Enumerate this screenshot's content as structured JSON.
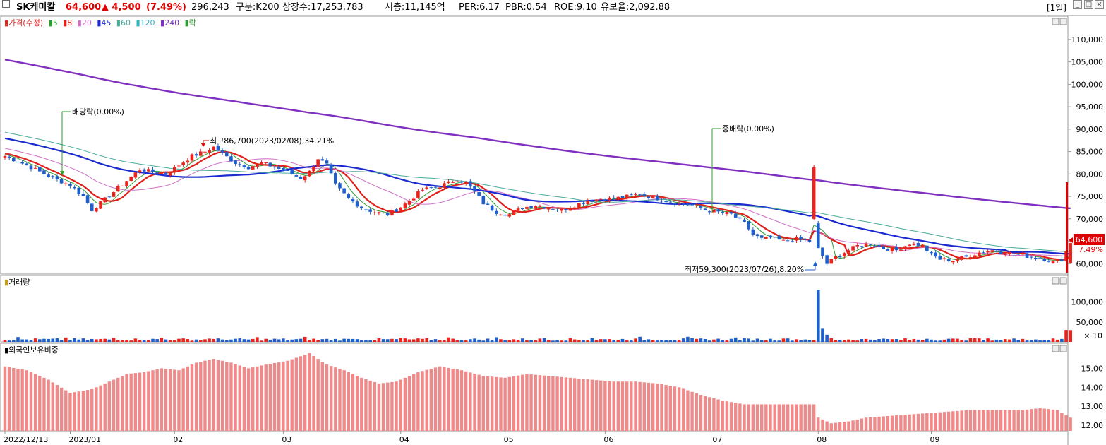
{
  "header": {
    "name": "SK케미칼",
    "price": "64,600",
    "change": "▲ 4,500",
    "change_pct": "(7.49%)",
    "volume": "296,243",
    "market": "구분:K200",
    "shares": "상장수:17,253,783",
    "mcap": "시총:11,145억",
    "per": "PER:6.17",
    "pbr": "PBR:0.54",
    "roe": "ROE:9.10",
    "reserve": "유보율:2,092.88",
    "period": "[1일]"
  },
  "price_legend": [
    "가격(수정)",
    "5",
    "8",
    "20",
    "45",
    "60",
    "120",
    "240",
    "락"
  ],
  "volume_title": "거래량",
  "foreign_title": "외국인보유비중",
  "current_price_tag": "64,600",
  "current_pct_tag": "7.49%",
  "volume_unit": "× 10",
  "annotations": {
    "dividend1": "배당락(0.00%)",
    "dividend2": "중배락(0.00%)",
    "high": "최고86,700(2023/02/08),34.21%",
    "low": "최저59,300(2023/07/26),8.20%"
  },
  "colors": {
    "up": "#e8241f",
    "down": "#1f5fcc",
    "ma5": "#2e9c2e",
    "ma8": "#e0201a",
    "ma20": "#d070c8",
    "ma45": "#1a2ad0",
    "ma60": "#4aaa9a",
    "ma240": "#8030c0",
    "foreign": "#f08a8a"
  },
  "chart_data": [
    {
      "type": "candlestick",
      "title": "가격(수정)",
      "x_ticks": [
        "2022/12/13",
        "2023/01",
        "02",
        "03",
        "04",
        "05",
        "06",
        "07",
        "08",
        "09"
      ],
      "y_ticks": [
        60000,
        65000,
        70000,
        75000,
        80000,
        85000,
        90000,
        95000,
        100000,
        105000,
        110000
      ],
      "ylim": [
        58000,
        112500
      ],
      "close_anchors": [
        [
          0,
          84000
        ],
        [
          5,
          82000
        ],
        [
          10,
          79500
        ],
        [
          15,
          77500
        ],
        [
          18,
          75000
        ],
        [
          20,
          72000
        ],
        [
          22,
          73500
        ],
        [
          25,
          76000
        ],
        [
          28,
          78500
        ],
        [
          31,
          81000
        ],
        [
          34,
          80500
        ],
        [
          37,
          80000
        ],
        [
          40,
          82000
        ],
        [
          43,
          84000
        ],
        [
          46,
          85000
        ],
        [
          48,
          86000
        ],
        [
          50,
          84500
        ],
        [
          53,
          82500
        ],
        [
          56,
          81500
        ],
        [
          59,
          82500
        ],
        [
          62,
          81500
        ],
        [
          65,
          80500
        ],
        [
          68,
          79000
        ],
        [
          70,
          80500
        ],
        [
          72,
          83500
        ],
        [
          74,
          82000
        ],
        [
          76,
          77500
        ],
        [
          79,
          74500
        ],
        [
          82,
          72500
        ],
        [
          85,
          71500
        ],
        [
          88,
          71000
        ],
        [
          90,
          72000
        ],
        [
          93,
          74000
        ],
        [
          96,
          76500
        ],
        [
          99,
          77000
        ],
        [
          102,
          78000
        ],
        [
          104,
          78800
        ],
        [
          106,
          78000
        ],
        [
          108,
          76000
        ],
        [
          110,
          73500
        ],
        [
          113,
          71500
        ],
        [
          116,
          71000
        ],
        [
          119,
          72500
        ],
        [
          122,
          73000
        ],
        [
          125,
          72500
        ],
        [
          128,
          72000
        ],
        [
          131,
          73000
        ],
        [
          134,
          74000
        ],
        [
          137,
          74500
        ],
        [
          140,
          74500
        ],
        [
          143,
          75000
        ],
        [
          146,
          75500
        ],
        [
          149,
          74800
        ],
        [
          152,
          74000
        ],
        [
          155,
          73500
        ],
        [
          158,
          73000
        ],
        [
          161,
          72000
        ],
        [
          164,
          71500
        ],
        [
          167,
          71000
        ],
        [
          170,
          69000
        ],
        [
          172,
          66500
        ],
        [
          174,
          65500
        ],
        [
          176,
          65800
        ],
        [
          179,
          65000
        ],
        [
          182,
          65500
        ],
        [
          185,
          65000
        ],
        [
          187,
          63500
        ],
        [
          189,
          60000
        ],
        [
          191,
          61500
        ],
        [
          193,
          62500
        ],
        [
          196,
          64000
        ],
        [
          199,
          64500
        ],
        [
          202,
          63500
        ],
        [
          205,
          63000
        ],
        [
          208,
          64500
        ],
        [
          211,
          64000
        ],
        [
          213,
          62000
        ],
        [
          215,
          61000
        ],
        [
          218,
          60800
        ],
        [
          221,
          61500
        ],
        [
          224,
          62500
        ],
        [
          227,
          63000
        ],
        [
          230,
          62500
        ],
        [
          233,
          62000
        ],
        [
          236,
          61500
        ],
        [
          239,
          61000
        ],
        [
          241,
          60500
        ],
        [
          243,
          61000
        ],
        [
          245,
          64600
        ]
      ],
      "series": [
        {
          "name": "5",
          "period": 5
        },
        {
          "name": "8",
          "period": 8
        },
        {
          "name": "20",
          "period": 20
        },
        {
          "name": "45",
          "period": 45
        },
        {
          "name": "60",
          "period": 60
        },
        {
          "name": "240",
          "period": 240
        }
      ]
    },
    {
      "type": "bar",
      "title": "거래량",
      "y_ticks": [
        50000,
        100000
      ],
      "ylim": [
        0,
        140000
      ],
      "spike_index": 187,
      "spike_value": 131000
    },
    {
      "type": "bar",
      "title": "외국인보유비중",
      "y_ticks": [
        12.0,
        13.0,
        14.0,
        15.0
      ],
      "ylim": [
        11.7,
        15.8
      ],
      "anchors": [
        [
          0,
          15.1
        ],
        [
          5,
          14.9
        ],
        [
          10,
          14.4
        ],
        [
          15,
          13.7
        ],
        [
          20,
          13.9
        ],
        [
          24,
          14.3
        ],
        [
          28,
          14.7
        ],
        [
          32,
          14.8
        ],
        [
          36,
          15.0
        ],
        [
          40,
          14.9
        ],
        [
          44,
          15.3
        ],
        [
          48,
          15.5
        ],
        [
          52,
          15.3
        ],
        [
          56,
          15.0
        ],
        [
          60,
          15.2
        ],
        [
          65,
          15.4
        ],
        [
          70,
          15.8
        ],
        [
          74,
          15.2
        ],
        [
          78,
          14.9
        ],
        [
          82,
          14.5
        ],
        [
          86,
          14.2
        ],
        [
          90,
          14.3
        ],
        [
          95,
          14.8
        ],
        [
          100,
          15.1
        ],
        [
          105,
          14.9
        ],
        [
          110,
          14.6
        ],
        [
          115,
          14.5
        ],
        [
          120,
          14.7
        ],
        [
          125,
          14.6
        ],
        [
          130,
          14.5
        ],
        [
          135,
          14.4
        ],
        [
          140,
          14.3
        ],
        [
          145,
          14.3
        ],
        [
          150,
          14.2
        ],
        [
          155,
          14.0
        ],
        [
          160,
          13.6
        ],
        [
          165,
          13.3
        ],
        [
          170,
          13.1
        ],
        [
          178,
          13.1
        ],
        [
          186,
          13.1
        ],
        [
          187,
          12.4
        ],
        [
          190,
          12.1
        ],
        [
          194,
          12.2
        ],
        [
          198,
          12.4
        ],
        [
          204,
          12.5
        ],
        [
          210,
          12.6
        ],
        [
          216,
          12.7
        ],
        [
          222,
          12.8
        ],
        [
          228,
          12.8
        ],
        [
          234,
          12.8
        ],
        [
          238,
          12.9
        ],
        [
          242,
          12.8
        ],
        [
          245,
          12.4
        ]
      ]
    }
  ]
}
